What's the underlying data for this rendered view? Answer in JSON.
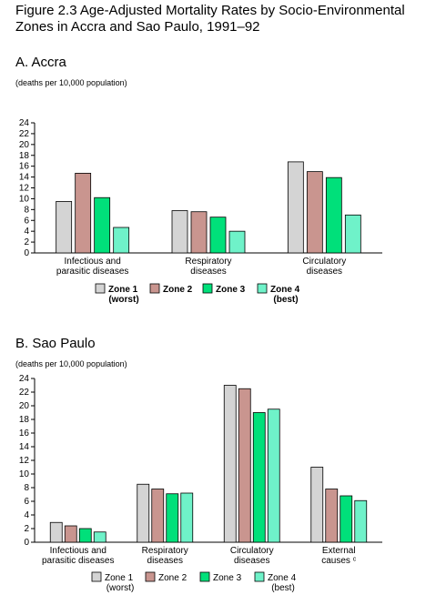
{
  "figure_title": "Figure 2.3 Age-Adjusted Mortality Rates by Socio-Environmental Zones in Accra and Sao Paulo, 1991–92",
  "colors": {
    "zone1": "#d4d4d4",
    "zone2": "#c9958f",
    "zone3": "#00e07a",
    "zone4": "#6ff2c9",
    "grid": "#000000"
  },
  "chart_data": [
    {
      "type": "bar",
      "title": "A. Accra",
      "ylabel": "(deaths per 10,000 population)",
      "ylim": [
        0,
        24
      ],
      "yticks": [
        "0",
        "2",
        "4",
        "6",
        "8",
        "10",
        "12",
        "14",
        "16",
        "18",
        "20",
        "22",
        "24"
      ],
      "categories": [
        [
          "Infectious and",
          "parasitic diseases"
        ],
        [
          "Respiratory",
          "diseases"
        ],
        [
          "Circulatory",
          "diseases"
        ]
      ],
      "series": [
        {
          "name": "Zone 1",
          "note": "(worst)",
          "values": [
            9.5,
            7.8,
            16.8
          ]
        },
        {
          "name": "Zone 2",
          "note": "",
          "values": [
            14.7,
            7.6,
            15.0
          ]
        },
        {
          "name": "Zone 3",
          "note": "",
          "values": [
            10.2,
            6.6,
            13.9
          ]
        },
        {
          "name": "Zone 4",
          "note": "(best)",
          "values": [
            4.7,
            4.0,
            7.0
          ]
        }
      ],
      "legend_bold": true,
      "legend_position": "bottom"
    },
    {
      "type": "bar",
      "title": "B. Sao Paulo",
      "ylabel": "(deaths per 10,000 population)",
      "ylim": [
        0,
        24
      ],
      "yticks": [
        "0",
        "2",
        "4",
        "6",
        "8",
        "10",
        "12",
        "14",
        "16",
        "18",
        "20",
        "22",
        "24"
      ],
      "categories": [
        [
          "Infectious and",
          "parasitic diseases"
        ],
        [
          "Respiratory",
          "diseases"
        ],
        [
          "Circulatory",
          "diseases"
        ],
        [
          "External",
          "causes ᶜ"
        ]
      ],
      "series": [
        {
          "name": "Zone 1",
          "note": "(worst)",
          "values": [
            2.9,
            8.5,
            23.0,
            11.0
          ]
        },
        {
          "name": "Zone 2",
          "note": "",
          "values": [
            2.4,
            7.8,
            22.5,
            7.8
          ]
        },
        {
          "name": "Zone 3",
          "note": "",
          "values": [
            2.0,
            7.1,
            19.0,
            6.8
          ]
        },
        {
          "name": "Zone 4",
          "note": "(best)",
          "values": [
            1.5,
            7.2,
            19.5,
            6.1
          ]
        }
      ],
      "legend_bold": false,
      "legend_position": "bottom"
    }
  ]
}
